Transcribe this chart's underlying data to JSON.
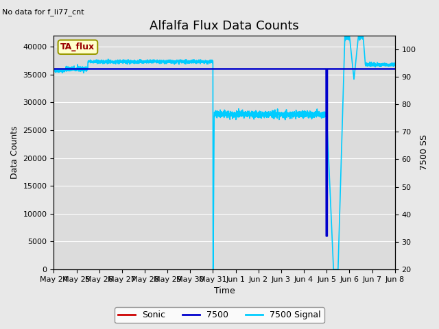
{
  "title": "Alfalfa Flux Data Counts",
  "subtitle": "No data for f_li77_cnt",
  "xlabel": "Time",
  "ylabel_left": "Data Counts",
  "ylabel_right": "7500 SS",
  "annotation_box": "TA_flux",
  "ylim_left": [
    0,
    42000
  ],
  "ylim_right": [
    20,
    105
  ],
  "xtick_labels": [
    "May 24",
    "May 25",
    "May 26",
    "May 27",
    "May 28",
    "May 29",
    "May 30",
    "May 31",
    "Jun 1",
    "Jun 2",
    "Jun 3",
    "Jun 4",
    "Jun 5",
    "Jun 6",
    "Jun 7",
    "Jun 8"
  ],
  "ytick_left": [
    0,
    5000,
    10000,
    15000,
    20000,
    25000,
    30000,
    35000,
    40000
  ],
  "ytick_right": [
    20,
    30,
    40,
    50,
    60,
    70,
    80,
    90,
    100
  ],
  "legend_labels": [
    "Sonic",
    "7500",
    "7500 Signal"
  ],
  "legend_colors": [
    "#cc0000",
    "#0000cc",
    "#00ccff"
  ],
  "bg_color": "#e8e8e8",
  "plot_bg_color": "#dcdcdc",
  "grid_color": "#ffffff",
  "title_fontsize": 13,
  "label_fontsize": 9,
  "tick_fontsize": 8
}
